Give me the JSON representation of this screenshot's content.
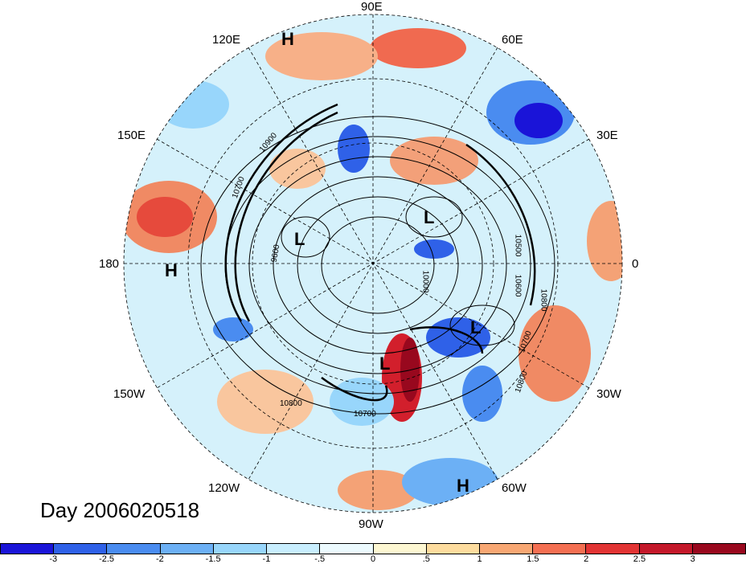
{
  "day_label": "Day 2006020518",
  "longitude_labels": {
    "lon_90e": "90E",
    "lon_60e": "60E",
    "lon_30e": "30E",
    "lon_0": "0",
    "lon_30w": "30W",
    "lon_60w": "60W",
    "lon_90w": "90W",
    "lon_120w": "120W",
    "lon_150w": "150W",
    "lon_180": "180",
    "lon_150e": "150E",
    "lon_120e": "120E"
  },
  "pressure_centers": [
    "H",
    "H",
    "H",
    "L",
    "L",
    "L",
    "L"
  ],
  "contour_labels": [
    "10900",
    "10700",
    "10500",
    "10600",
    "10800",
    "10700",
    "10800",
    "10700",
    "10800",
    "9600",
    "10000"
  ],
  "colorbar": {
    "ticks": [
      "-3",
      "-2.5",
      "-2",
      "-1.5",
      "-1",
      "-.5",
      "0",
      ".5",
      "1",
      "1.5",
      "2",
      "2.5",
      "3"
    ],
    "colors": [
      "#1a14d8",
      "#2f61e8",
      "#4a8cf0",
      "#6cb0f5",
      "#98d6fb",
      "#c8eefe",
      "#ecfafe",
      "#fdf7d2",
      "#fddc9e",
      "#f8a773",
      "#f46f52",
      "#e23434",
      "#c4182a",
      "#99081e"
    ]
  }
}
